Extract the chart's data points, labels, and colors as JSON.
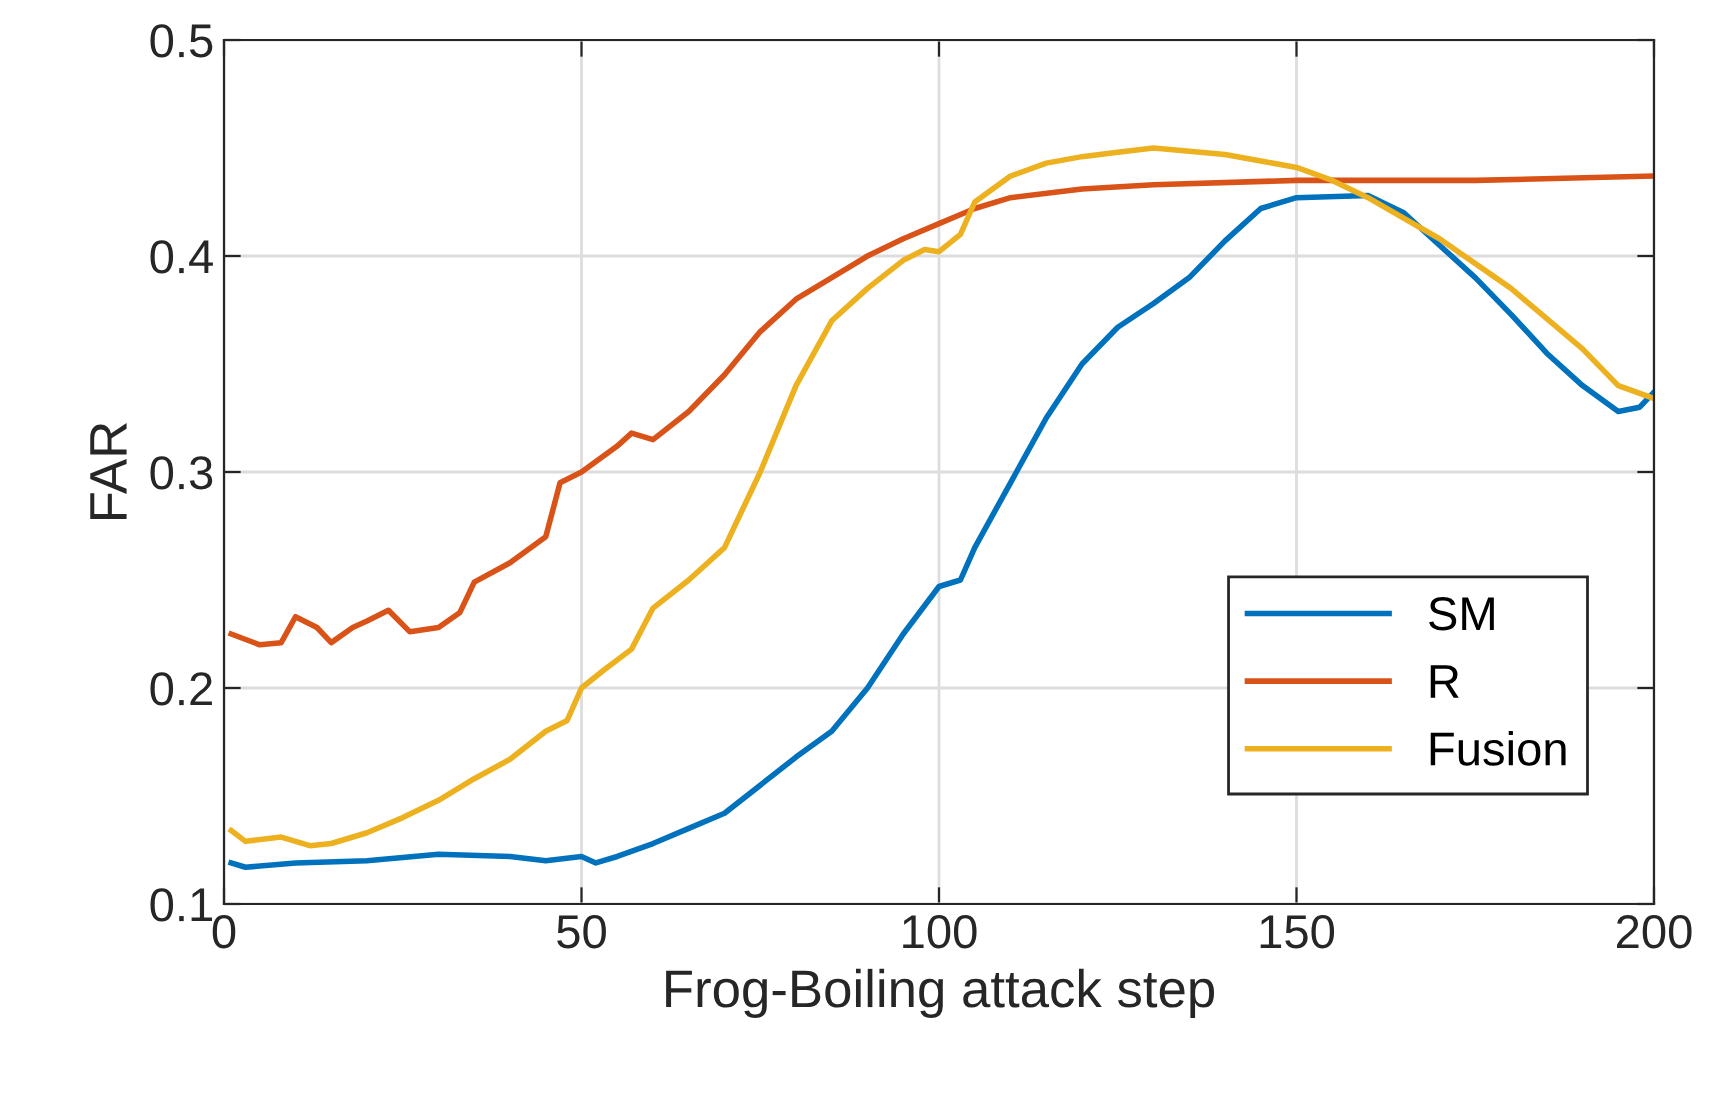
{
  "chart_data": {
    "type": "line",
    "xlabel": "Frog-Boiling attack step",
    "ylabel": "FAR",
    "xlim": [
      0,
      200
    ],
    "xticks": [
      0,
      50,
      100,
      150,
      200
    ],
    "ylim": [
      0.1,
      0.5
    ],
    "yticks": [
      0.1,
      0.2,
      0.3,
      0.4,
      0.5
    ],
    "grid": true,
    "legend": "bottom right",
    "marker": "none",
    "line_style": "solid",
    "series": [
      {
        "name": "SM",
        "color": "#0072bd",
        "x": [
          1,
          3,
          10,
          20,
          30,
          40,
          45,
          50,
          52,
          55,
          60,
          65,
          70,
          75,
          80,
          85,
          90,
          95,
          100,
          103,
          105,
          110,
          115,
          120,
          125,
          130,
          135,
          140,
          145,
          150,
          160,
          165,
          170,
          175,
          180,
          185,
          190,
          195,
          198,
          200
        ],
        "values": [
          0.119,
          0.117,
          0.119,
          0.12,
          0.123,
          0.122,
          0.12,
          0.122,
          0.119,
          0.122,
          0.128,
          0.135,
          0.142,
          0.155,
          0.168,
          0.18,
          0.2,
          0.225,
          0.247,
          0.25,
          0.265,
          0.295,
          0.325,
          0.35,
          0.367,
          0.378,
          0.39,
          0.407,
          0.422,
          0.427,
          0.428,
          0.42,
          0.405,
          0.39,
          0.373,
          0.355,
          0.34,
          0.328,
          0.33,
          0.337
        ]
      },
      {
        "name": "R",
        "color": "#d95319",
        "x": [
          1,
          5,
          8,
          10,
          13,
          15,
          18,
          20,
          23,
          26,
          30,
          33,
          35,
          40,
          45,
          47,
          50,
          55,
          57,
          60,
          65,
          70,
          75,
          80,
          85,
          90,
          95,
          100,
          105,
          110,
          120,
          130,
          150,
          175,
          200
        ],
        "values": [
          0.225,
          0.22,
          0.221,
          0.233,
          0.228,
          0.221,
          0.228,
          0.231,
          0.236,
          0.226,
          0.228,
          0.235,
          0.249,
          0.258,
          0.27,
          0.295,
          0.3,
          0.312,
          0.318,
          0.315,
          0.328,
          0.345,
          0.365,
          0.38,
          0.39,
          0.4,
          0.408,
          0.415,
          0.422,
          0.427,
          0.431,
          0.433,
          0.435,
          0.435,
          0.437
        ]
      },
      {
        "name": "Fusion",
        "color": "#edb120",
        "x": [
          1,
          3,
          8,
          12,
          15,
          20,
          25,
          30,
          35,
          40,
          45,
          48,
          50,
          53,
          57,
          60,
          65,
          70,
          75,
          80,
          85,
          90,
          95,
          98,
          100,
          103,
          105,
          110,
          115,
          120,
          125,
          130,
          140,
          145,
          150,
          155,
          160,
          170,
          180,
          190,
          195,
          200
        ],
        "values": [
          0.134,
          0.129,
          0.131,
          0.127,
          0.128,
          0.133,
          0.14,
          0.148,
          0.158,
          0.167,
          0.18,
          0.185,
          0.2,
          0.208,
          0.218,
          0.237,
          0.25,
          0.265,
          0.3,
          0.34,
          0.37,
          0.385,
          0.398,
          0.403,
          0.402,
          0.41,
          0.425,
          0.437,
          0.443,
          0.446,
          0.448,
          0.45,
          0.447,
          0.444,
          0.441,
          0.435,
          0.427,
          0.408,
          0.385,
          0.357,
          0.34,
          0.334
        ]
      }
    ]
  }
}
